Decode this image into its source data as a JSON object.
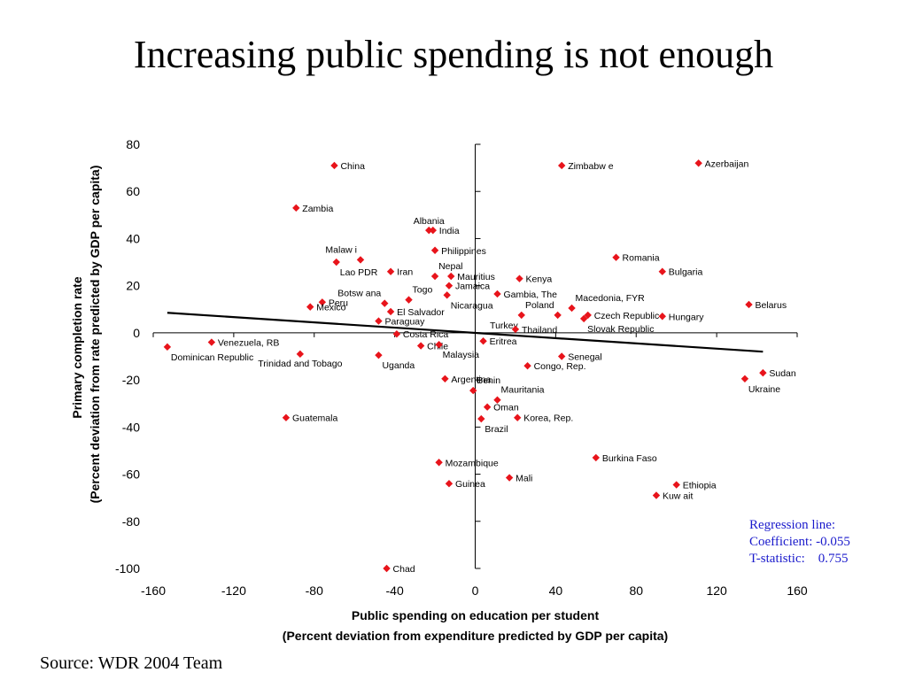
{
  "title": "Increasing public spending is not enough",
  "source": "Source: WDR 2004 Team",
  "regression": {
    "line1": "Regression line:",
    "line2": "Coefficient: -0.055",
    "line3": "T-statistic:    0.755"
  },
  "chart_data": {
    "type": "scatter",
    "title": "Increasing public spending is not enough",
    "xlabel_line1": "Public spending on education per student",
    "xlabel_line2": "(Percent deviation from expenditure predicted by GDP per capita)",
    "ylabel_line1": "Primary completion rate",
    "ylabel_line2": "(Percent deviation from rate predicted by GDP per capita)",
    "xlim": [
      -160,
      160
    ],
    "ylim": [
      -100,
      80
    ],
    "xticks": [
      -160,
      -120,
      -80,
      -40,
      0,
      40,
      80,
      120,
      160
    ],
    "yticks": [
      80,
      60,
      40,
      20,
      0,
      -20,
      -40,
      -60,
      -80,
      -100
    ],
    "marker_color": "#e8141b",
    "grid": false,
    "regression_line": {
      "x1": -153,
      "y1": 8.5,
      "x2": 143,
      "y2": -8
    },
    "points": [
      {
        "label": "China",
        "x": -70,
        "y": 71,
        "pos": "r"
      },
      {
        "label": "Zimbabw e",
        "x": 43,
        "y": 71,
        "pos": "r"
      },
      {
        "label": "Azerbaijan",
        "x": 111,
        "y": 72,
        "pos": "r"
      },
      {
        "label": "Zambia",
        "x": -89,
        "y": 53,
        "pos": "r"
      },
      {
        "label": "Albania",
        "x": -23,
        "y": 43.5,
        "pos": "t"
      },
      {
        "label": "India",
        "x": -21,
        "y": 43.5,
        "pos": "r"
      },
      {
        "label": "Malaw i",
        "x": -57,
        "y": 31,
        "pos": "tl"
      },
      {
        "label": "Philippines",
        "x": -20,
        "y": 35,
        "pos": "r"
      },
      {
        "label": "Lao PDR",
        "x": -69,
        "y": 30,
        "pos": "br"
      },
      {
        "label": "Iran",
        "x": -42,
        "y": 26,
        "pos": "r"
      },
      {
        "label": "Nepal",
        "x": -20,
        "y": 24,
        "pos": "tr"
      },
      {
        "label": "Mauritius",
        "x": -12,
        "y": 24,
        "pos": "r"
      },
      {
        "label": "Jamaica",
        "x": -13,
        "y": 20,
        "pos": "r"
      },
      {
        "label": "Romania",
        "x": 70,
        "y": 32,
        "pos": "r"
      },
      {
        "label": "Bulgaria",
        "x": 93,
        "y": 26,
        "pos": "r"
      },
      {
        "label": "Kenya",
        "x": 22,
        "y": 23,
        "pos": "r"
      },
      {
        "label": "Botsw ana",
        "x": -45,
        "y": 12.5,
        "pos": "tl"
      },
      {
        "label": "Togo",
        "x": -33,
        "y": 14,
        "pos": "tr"
      },
      {
        "label": "Nicaragua",
        "x": -14,
        "y": 16,
        "pos": "br"
      },
      {
        "label": "Gambia, The",
        "x": 11,
        "y": 16.5,
        "pos": "r"
      },
      {
        "label": "Macedonia, FYR",
        "x": 48,
        "y": 10.5,
        "pos": "tr"
      },
      {
        "label": "Belarus",
        "x": 136,
        "y": 12,
        "pos": "r"
      },
      {
        "label": "Peru",
        "x": -76,
        "y": 13,
        "pos": "r"
      },
      {
        "label": "Mexico",
        "x": -82,
        "y": 11,
        "pos": "r"
      },
      {
        "label": "El Salvador",
        "x": -42,
        "y": 9,
        "pos": "r"
      },
      {
        "label": "Paraguay",
        "x": -48,
        "y": 5,
        "pos": "r"
      },
      {
        "label": "Poland",
        "x": 41,
        "y": 7.5,
        "pos": "tl"
      },
      {
        "label": "Czech Republic",
        "x": 56,
        "y": 7.5,
        "pos": "r"
      },
      {
        "label": "Slovak Republic",
        "x": 54,
        "y": 6,
        "pos": "br"
      },
      {
        "label": "Hungary",
        "x": 93,
        "y": 7,
        "pos": "r"
      },
      {
        "label": "Turkey",
        "x": 23,
        "y": 7.5,
        "pos": "bl"
      },
      {
        "label": "Thailand",
        "x": 20,
        "y": 1.5,
        "pos": "r"
      },
      {
        "label": "Costa Rica",
        "x": -39,
        "y": -0.5,
        "pos": "r"
      },
      {
        "label": "Chile",
        "x": -27,
        "y": -5.5,
        "pos": "r"
      },
      {
        "label": "Eritrea",
        "x": 4,
        "y": -3.5,
        "pos": "r"
      },
      {
        "label": "Malaysia",
        "x": -18,
        "y": -5,
        "pos": "br"
      },
      {
        "label": "Venezuela, RB",
        "x": -131,
        "y": -4,
        "pos": "r"
      },
      {
        "label": "Dominican Republic",
        "x": -153,
        "y": -6,
        "pos": "br"
      },
      {
        "label": "Trinidad and Tobago",
        "x": -87,
        "y": -9,
        "pos": "b"
      },
      {
        "label": "Uganda",
        "x": -48,
        "y": -9.5,
        "pos": "br"
      },
      {
        "label": "Senegal",
        "x": 43,
        "y": -10,
        "pos": "r"
      },
      {
        "label": "Congo, Rep.",
        "x": 26,
        "y": -14,
        "pos": "r"
      },
      {
        "label": "Sudan",
        "x": 143,
        "y": -17,
        "pos": "r"
      },
      {
        "label": "Ukraine",
        "x": 134,
        "y": -19.5,
        "pos": "br"
      },
      {
        "label": "Argentina",
        "x": -15,
        "y": -19.5,
        "pos": "r"
      },
      {
        "label": "Benin",
        "x": -1,
        "y": -24.5,
        "pos": "tr"
      },
      {
        "label": "Mauritania",
        "x": 11,
        "y": -28.5,
        "pos": "tr"
      },
      {
        "label": "Oman",
        "x": 6,
        "y": -31.5,
        "pos": "r"
      },
      {
        "label": "Korea, Rep.",
        "x": 21,
        "y": -36,
        "pos": "r"
      },
      {
        "label": "Brazil",
        "x": 3,
        "y": -36.5,
        "pos": "br"
      },
      {
        "label": "Guatemala",
        "x": -94,
        "y": -36,
        "pos": "r"
      },
      {
        "label": "Burkina Faso",
        "x": 60,
        "y": -53,
        "pos": "r"
      },
      {
        "label": "Mozambique",
        "x": -18,
        "y": -55,
        "pos": "r"
      },
      {
        "label": "Mali",
        "x": 17,
        "y": -61.5,
        "pos": "r"
      },
      {
        "label": "Guinea",
        "x": -13,
        "y": -64,
        "pos": "r"
      },
      {
        "label": "Ethiopia",
        "x": 100,
        "y": -64.5,
        "pos": "r"
      },
      {
        "label": "Kuw ait",
        "x": 90,
        "y": -69,
        "pos": "r"
      },
      {
        "label": "Chad",
        "x": -44,
        "y": -100,
        "pos": "r"
      }
    ]
  }
}
